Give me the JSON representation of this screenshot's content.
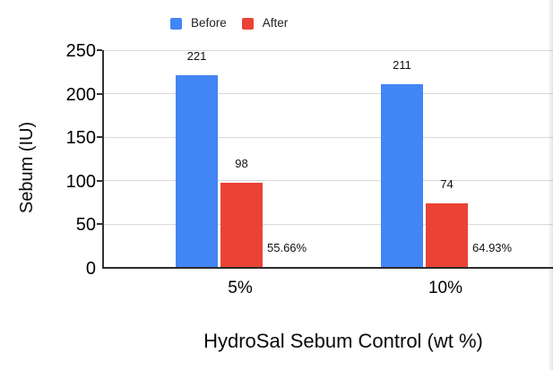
{
  "chart_data": {
    "type": "bar",
    "title": "",
    "xlabel": "HydroSal Sebum Control (wt %)",
    "ylabel": "Sebum (IU)",
    "categories": [
      "5%",
      "10%"
    ],
    "series": [
      {
        "name": "Before",
        "color": "#4285F4",
        "values": [
          221,
          211
        ]
      },
      {
        "name": "After",
        "color": "#EA4335",
        "values": [
          98,
          74
        ]
      }
    ],
    "annotations": [
      {
        "category": "5%",
        "text": "55.66%"
      },
      {
        "category": "10%",
        "text": "64.93%"
      }
    ],
    "ylim": [
      0,
      250
    ],
    "yticks": [
      0,
      50,
      100,
      150,
      200,
      250
    ],
    "grid": true,
    "legend_position": "top",
    "colors": {
      "grid_line": "#d9d9d9",
      "axis_line": "#333333",
      "label_text": "#111111",
      "legend_text": "#222222"
    }
  }
}
